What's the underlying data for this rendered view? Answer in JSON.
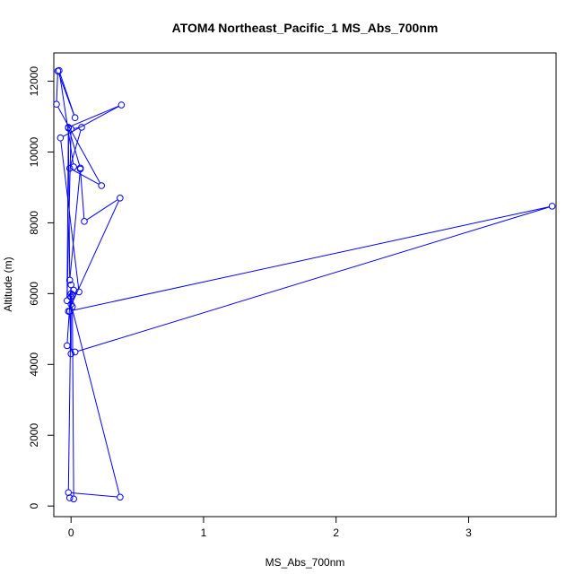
{
  "chart_data": {
    "type": "scatter",
    "title": "ATOM4 Northeast_Pacific_1 MS_Abs_700nm",
    "xlabel": "MS_Abs_700nm",
    "ylabel": "Altitude (m)",
    "xlim": [
      -0.13,
      3.66
    ],
    "ylim": [
      -300,
      12800
    ],
    "x_ticks": [
      0,
      1,
      2,
      3
    ],
    "x_tick_labels": [
      "0",
      "1",
      "2",
      "3"
    ],
    "y_ticks": [
      0,
      2000,
      4000,
      6000,
      8000,
      10000,
      12000
    ],
    "y_tick_labels": [
      "0",
      "2000",
      "4000",
      "6000",
      "8000",
      "10000",
      "12000"
    ],
    "grid": false,
    "legend": "none",
    "connected": true,
    "color": "#0000ff",
    "series": [
      {
        "x": [
          -0.01,
          0.02,
          0.01,
          0.0,
          -0.02,
          0.37,
          0.0,
          0.01,
          0.06,
          -0.08,
          0.38,
          -0.02,
          0.07,
          0.02,
          -0.09,
          0.03,
          -0.1,
          -0.11,
          0.23,
          -0.01,
          0.08,
          0.0,
          -0.03,
          -0.02,
          -0.01,
          0.07,
          0.1,
          0.37,
          -0.02,
          3.63,
          0.03,
          -0.03,
          0.0,
          0.0,
          -0.01,
          0.0,
          0.02
        ],
        "y": [
          230,
          200,
          5630,
          6000,
          380,
          250,
          5700,
          5960,
          6050,
          10400,
          11330,
          10700,
          9550,
          9580,
          12300,
          10970,
          12290,
          11350,
          9050,
          9540,
          10700,
          10650,
          5800,
          10680,
          6380,
          9520,
          8040,
          8700,
          5500,
          8470,
          4350,
          4530,
          6250,
          4300,
          5500,
          5900,
          6100
        ]
      }
    ]
  }
}
